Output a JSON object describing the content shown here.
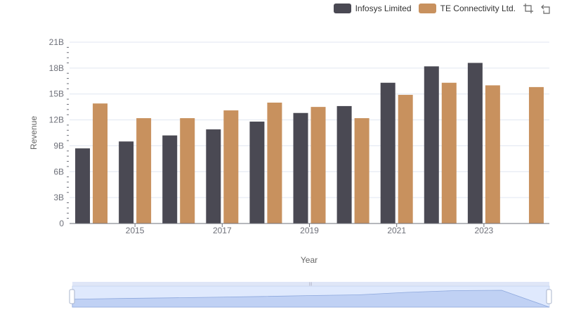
{
  "legend": {
    "items": [
      {
        "label": "Infosys Limited",
        "color": "#4a4953"
      },
      {
        "label": "TE Connectivity Ltd.",
        "color": "#c8915e"
      }
    ]
  },
  "toolbox": {
    "icons": [
      "zoom-icon",
      "restore-icon"
    ]
  },
  "chart_data": {
    "type": "bar",
    "xlabel": "Year",
    "ylabel": "Revenue",
    "ylim": [
      0,
      21000000000
    ],
    "yticks": [
      "0",
      "3B",
      "6B",
      "9B",
      "12B",
      "15B",
      "18B",
      "21B"
    ],
    "categories": [
      "2014",
      "2015",
      "2016",
      "2017",
      "2018",
      "2019",
      "2020",
      "2021",
      "2022",
      "2023",
      "2024"
    ],
    "xtick_labels": [
      "2015",
      "2017",
      "2019",
      "2021",
      "2023"
    ],
    "series": [
      {
        "name": "Infosys Limited",
        "color": "#4a4953",
        "values": [
          8700000000,
          9500000000,
          10200000000,
          10900000000,
          11800000000,
          12800000000,
          13600000000,
          16300000000,
          18200000000,
          18600000000,
          null
        ]
      },
      {
        "name": "TE Connectivity Ltd.",
        "color": "#c8915e",
        "values": [
          13900000000,
          12200000000,
          12200000000,
          13100000000,
          14000000000,
          13500000000,
          12200000000,
          14900000000,
          16300000000,
          16000000000,
          15800000000
        ]
      }
    ],
    "grid": true,
    "legend_position": "top-right",
    "data_zoom": {
      "start": 0,
      "end": 100
    }
  }
}
